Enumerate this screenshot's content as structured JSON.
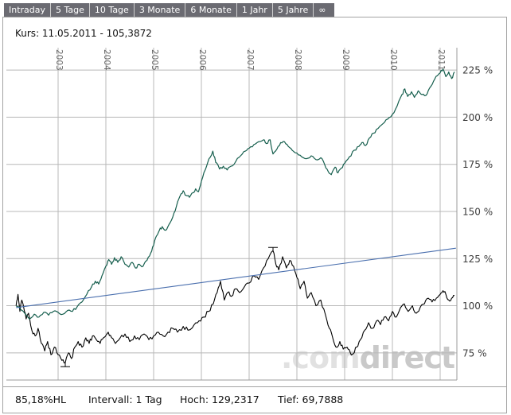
{
  "toolbar": {
    "tabs": [
      "Intraday",
      "5 Tage",
      "10 Tage",
      "3 Monate",
      "6 Monate",
      "1 Jahr",
      "5 Jahre",
      "∞"
    ]
  },
  "header": {
    "kurs": "Kurs: 11.05.2011 - 105,3872"
  },
  "footer": {
    "change": "85,18%HL",
    "interval": "Intervall: 1 Tag",
    "high": "Hoch: 129,2317",
    "low": "Tief: 69,7888"
  },
  "watermark": {
    "prefix": ".com",
    "suffix": "direct"
  },
  "colors": {
    "tabbar_bg": "#6b6b72",
    "tab_text": "#ffffff",
    "frame_border": "#a3a3a3",
    "grid": "#b8b8b8",
    "axis": "#9b9b9b",
    "year_label": "#666666",
    "percent_label": "#3a3a3a",
    "stock_line": "#000000",
    "benchmark_line": "#155e4d",
    "trend_line": "#4a6fae",
    "watermark_light": "#e1e1e1",
    "watermark_dark": "#c9c9c9"
  },
  "chart_data": {
    "type": "line",
    "title": "",
    "x_axis": {
      "position": "top",
      "labels": [
        "2003",
        "2004",
        "2005",
        "2006",
        "2007",
        "2008",
        "2009",
        "2010",
        "2011"
      ],
      "ticks": [
        2003,
        2004,
        2005,
        2006,
        2007,
        2008,
        2009,
        2010,
        2011
      ],
      "range": [
        2002.1,
        2011.35
      ],
      "label_rotation": 90
    },
    "y_axis": {
      "position": "right",
      "unit": "%",
      "labels": [
        "225 %",
        "200 %",
        "175 %",
        "150 %",
        "125 %",
        "100 %",
        "75 %"
      ],
      "ticks": [
        225,
        200,
        175,
        150,
        125,
        100,
        75
      ],
      "range": [
        60.6,
        237.7
      ]
    },
    "grid": true,
    "legend": "none",
    "series": [
      {
        "name": "stock-percent",
        "color": "#000000",
        "width": 1.1,
        "noise": 1.1,
        "points": [
          [
            2002.12,
            100
          ],
          [
            2002.16,
            106
          ],
          [
            2002.2,
            97
          ],
          [
            2002.24,
            103
          ],
          [
            2002.28,
            99
          ],
          [
            2002.33,
            93
          ],
          [
            2002.38,
            96
          ],
          [
            2002.45,
            87
          ],
          [
            2002.52,
            84
          ],
          [
            2002.58,
            88
          ],
          [
            2002.65,
            80
          ],
          [
            2002.72,
            76
          ],
          [
            2002.78,
            81
          ],
          [
            2002.85,
            74
          ],
          [
            2002.92,
            78
          ],
          [
            2003.0,
            74
          ],
          [
            2003.08,
            71
          ],
          [
            2003.15,
            69.8
          ],
          [
            2003.22,
            75
          ],
          [
            2003.28,
            72
          ],
          [
            2003.35,
            78
          ],
          [
            2003.42,
            81
          ],
          [
            2003.5,
            78
          ],
          [
            2003.58,
            83
          ],
          [
            2003.65,
            80
          ],
          [
            2003.72,
            84
          ],
          [
            2003.8,
            82
          ],
          [
            2003.88,
            80
          ],
          [
            2003.95,
            83
          ],
          [
            2004.05,
            86
          ],
          [
            2004.12,
            83
          ],
          [
            2004.2,
            80
          ],
          [
            2004.3,
            83
          ],
          [
            2004.4,
            85
          ],
          [
            2004.5,
            81
          ],
          [
            2004.6,
            84
          ],
          [
            2004.7,
            82
          ],
          [
            2004.8,
            85
          ],
          [
            2004.9,
            82
          ],
          [
            2005.0,
            84
          ],
          [
            2005.1,
            86
          ],
          [
            2005.2,
            84
          ],
          [
            2005.3,
            86
          ],
          [
            2005.4,
            88
          ],
          [
            2005.5,
            86
          ],
          [
            2005.62,
            89
          ],
          [
            2005.72,
            87
          ],
          [
            2005.85,
            90
          ],
          [
            2005.95,
            92
          ],
          [
            2006.05,
            94
          ],
          [
            2006.15,
            97
          ],
          [
            2006.25,
            101
          ],
          [
            2006.33,
            107
          ],
          [
            2006.4,
            113
          ],
          [
            2006.48,
            103
          ],
          [
            2006.55,
            107
          ],
          [
            2006.63,
            105
          ],
          [
            2006.72,
            109
          ],
          [
            2006.8,
            107
          ],
          [
            2006.9,
            110
          ],
          [
            2007.0,
            112
          ],
          [
            2007.1,
            116
          ],
          [
            2007.2,
            114
          ],
          [
            2007.3,
            120
          ],
          [
            2007.4,
            125
          ],
          [
            2007.5,
            129.2
          ],
          [
            2007.56,
            122
          ],
          [
            2007.62,
            119
          ],
          [
            2007.7,
            126
          ],
          [
            2007.78,
            120
          ],
          [
            2007.85,
            124
          ],
          [
            2007.93,
            121
          ],
          [
            2008.0,
            115
          ],
          [
            2008.07,
            109
          ],
          [
            2008.15,
            113
          ],
          [
            2008.22,
            104
          ],
          [
            2008.3,
            107
          ],
          [
            2008.4,
            100
          ],
          [
            2008.5,
            103
          ],
          [
            2008.6,
            95
          ],
          [
            2008.68,
            88
          ],
          [
            2008.75,
            83
          ],
          [
            2008.82,
            78
          ],
          [
            2008.9,
            81
          ],
          [
            2008.97,
            77
          ],
          [
            2009.05,
            78
          ],
          [
            2009.12,
            75
          ],
          [
            2009.18,
            74.5
          ],
          [
            2009.25,
            78
          ],
          [
            2009.33,
            82
          ],
          [
            2009.42,
            87
          ],
          [
            2009.5,
            91
          ],
          [
            2009.58,
            88
          ],
          [
            2009.67,
            92
          ],
          [
            2009.75,
            90
          ],
          [
            2009.83,
            94
          ],
          [
            2009.92,
            92
          ],
          [
            2010.0,
            97
          ],
          [
            2010.08,
            94
          ],
          [
            2010.17,
            99
          ],
          [
            2010.25,
            101
          ],
          [
            2010.33,
            97
          ],
          [
            2010.42,
            100
          ],
          [
            2010.5,
            96
          ],
          [
            2010.58,
            99
          ],
          [
            2010.67,
            101
          ],
          [
            2010.75,
            104
          ],
          [
            2010.83,
            102
          ],
          [
            2010.92,
            104
          ],
          [
            2011.0,
            106
          ],
          [
            2011.06,
            108
          ],
          [
            2011.12,
            106
          ],
          [
            2011.18,
            103
          ],
          [
            2011.24,
            104
          ],
          [
            2011.3,
            105.4
          ]
        ]
      },
      {
        "name": "benchmark",
        "color": "#155e4d",
        "width": 1.2,
        "noise": 0.7,
        "points": [
          [
            2002.12,
            100
          ],
          [
            2002.2,
            98.5
          ],
          [
            2002.3,
            96
          ],
          [
            2002.4,
            93
          ],
          [
            2002.5,
            95.5
          ],
          [
            2002.6,
            94
          ],
          [
            2002.7,
            96.5
          ],
          [
            2002.8,
            95
          ],
          [
            2002.9,
            97
          ],
          [
            2003.0,
            96.5
          ],
          [
            2003.1,
            95.5
          ],
          [
            2003.2,
            97.5
          ],
          [
            2003.3,
            97
          ],
          [
            2003.4,
            99.5
          ],
          [
            2003.5,
            102
          ],
          [
            2003.6,
            106
          ],
          [
            2003.7,
            110
          ],
          [
            2003.78,
            113
          ],
          [
            2003.85,
            111.5
          ],
          [
            2003.92,
            116
          ],
          [
            2004.0,
            121
          ],
          [
            2004.06,
            124.5
          ],
          [
            2004.12,
            122
          ],
          [
            2004.18,
            125.5
          ],
          [
            2004.25,
            123
          ],
          [
            2004.32,
            126
          ],
          [
            2004.4,
            122
          ],
          [
            2004.48,
            120.5
          ],
          [
            2004.55,
            123
          ],
          [
            2004.62,
            120
          ],
          [
            2004.7,
            122
          ],
          [
            2004.78,
            121
          ],
          [
            2004.86,
            124
          ],
          [
            2004.94,
            128
          ],
          [
            2005.0,
            132
          ],
          [
            2005.06,
            137
          ],
          [
            2005.12,
            140
          ],
          [
            2005.18,
            142
          ],
          [
            2005.25,
            140
          ],
          [
            2005.32,
            143
          ],
          [
            2005.4,
            147
          ],
          [
            2005.48,
            153
          ],
          [
            2005.55,
            158
          ],
          [
            2005.62,
            161
          ],
          [
            2005.68,
            158.5
          ],
          [
            2005.75,
            157.5
          ],
          [
            2005.82,
            160
          ],
          [
            2005.88,
            162
          ],
          [
            2005.94,
            160.5
          ],
          [
            2006.0,
            166
          ],
          [
            2006.08,
            172
          ],
          [
            2006.16,
            178
          ],
          [
            2006.24,
            182
          ],
          [
            2006.3,
            176
          ],
          [
            2006.38,
            172.5
          ],
          [
            2006.46,
            174
          ],
          [
            2006.54,
            172
          ],
          [
            2006.62,
            174
          ],
          [
            2006.72,
            176.5
          ],
          [
            2006.82,
            179.5
          ],
          [
            2006.92,
            182
          ],
          [
            2007.0,
            183.5
          ],
          [
            2007.1,
            185.5
          ],
          [
            2007.2,
            187
          ],
          [
            2007.3,
            188
          ],
          [
            2007.36,
            186
          ],
          [
            2007.44,
            188
          ],
          [
            2007.5,
            180.5
          ],
          [
            2007.58,
            183
          ],
          [
            2007.66,
            186.5
          ],
          [
            2007.74,
            187
          ],
          [
            2007.82,
            184.5
          ],
          [
            2007.9,
            182.5
          ],
          [
            2008.0,
            181
          ],
          [
            2008.1,
            179
          ],
          [
            2008.2,
            178
          ],
          [
            2008.3,
            179.5
          ],
          [
            2008.4,
            177.5
          ],
          [
            2008.5,
            178.5
          ],
          [
            2008.58,
            175
          ],
          [
            2008.66,
            171
          ],
          [
            2008.72,
            169.5
          ],
          [
            2008.8,
            173.5
          ],
          [
            2008.86,
            170.5
          ],
          [
            2008.93,
            173
          ],
          [
            2009.0,
            175.5
          ],
          [
            2009.1,
            179
          ],
          [
            2009.2,
            182.5
          ],
          [
            2009.3,
            184.5
          ],
          [
            2009.36,
            186.5
          ],
          [
            2009.44,
            185
          ],
          [
            2009.52,
            189
          ],
          [
            2009.6,
            191.5
          ],
          [
            2009.7,
            194
          ],
          [
            2009.8,
            196.5
          ],
          [
            2009.9,
            199
          ],
          [
            2010.0,
            201.5
          ],
          [
            2010.1,
            206
          ],
          [
            2010.2,
            212
          ],
          [
            2010.26,
            215
          ],
          [
            2010.32,
            211
          ],
          [
            2010.4,
            213.5
          ],
          [
            2010.46,
            210.5
          ],
          [
            2010.54,
            214
          ],
          [
            2010.62,
            212
          ],
          [
            2010.7,
            211.5
          ],
          [
            2010.78,
            215.5
          ],
          [
            2010.86,
            219
          ],
          [
            2010.94,
            222
          ],
          [
            2011.0,
            223.5
          ],
          [
            2011.06,
            225.5
          ],
          [
            2011.12,
            221.5
          ],
          [
            2011.18,
            224
          ],
          [
            2011.24,
            220.5
          ],
          [
            2011.3,
            224
          ]
        ]
      },
      {
        "name": "trend-line",
        "color": "#4a6fae",
        "width": 1.1,
        "noise": 0,
        "points": [
          [
            2002.12,
            99
          ],
          [
            2011.33,
            130.5
          ]
        ]
      }
    ],
    "markers": {
      "high": {
        "x": 2007.5,
        "value": 129.2317
      },
      "low": {
        "x": 2003.15,
        "value": 69.7888
      }
    }
  }
}
